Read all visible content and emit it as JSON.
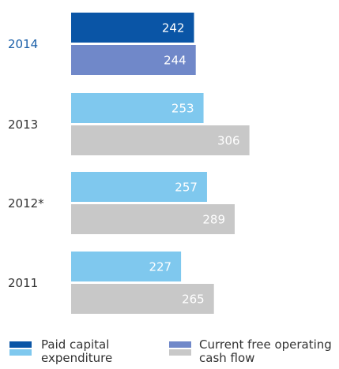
{
  "chart_data": {
    "type": "hbar",
    "categories": [
      "2014",
      "2013",
      "2012*",
      "2011"
    ],
    "category_colors": [
      "#1a5fa8",
      "#333333",
      "#333333",
      "#333333"
    ],
    "series": [
      {
        "name": "Paid capital expenditure",
        "colors": [
          "#0a55a6",
          "#7fc8ee",
          "#7fc8ee",
          "#7fc8ee"
        ],
        "values": [
          242,
          253,
          257,
          227
        ]
      },
      {
        "name": "Current free operating cash flow",
        "colors": [
          "#7088c9",
          "#c8c8c8",
          "#c8c8c8",
          "#c8c8c8"
        ],
        "values": [
          244,
          306,
          289,
          265
        ]
      }
    ],
    "xlim": [
      100,
      310
    ]
  }
}
